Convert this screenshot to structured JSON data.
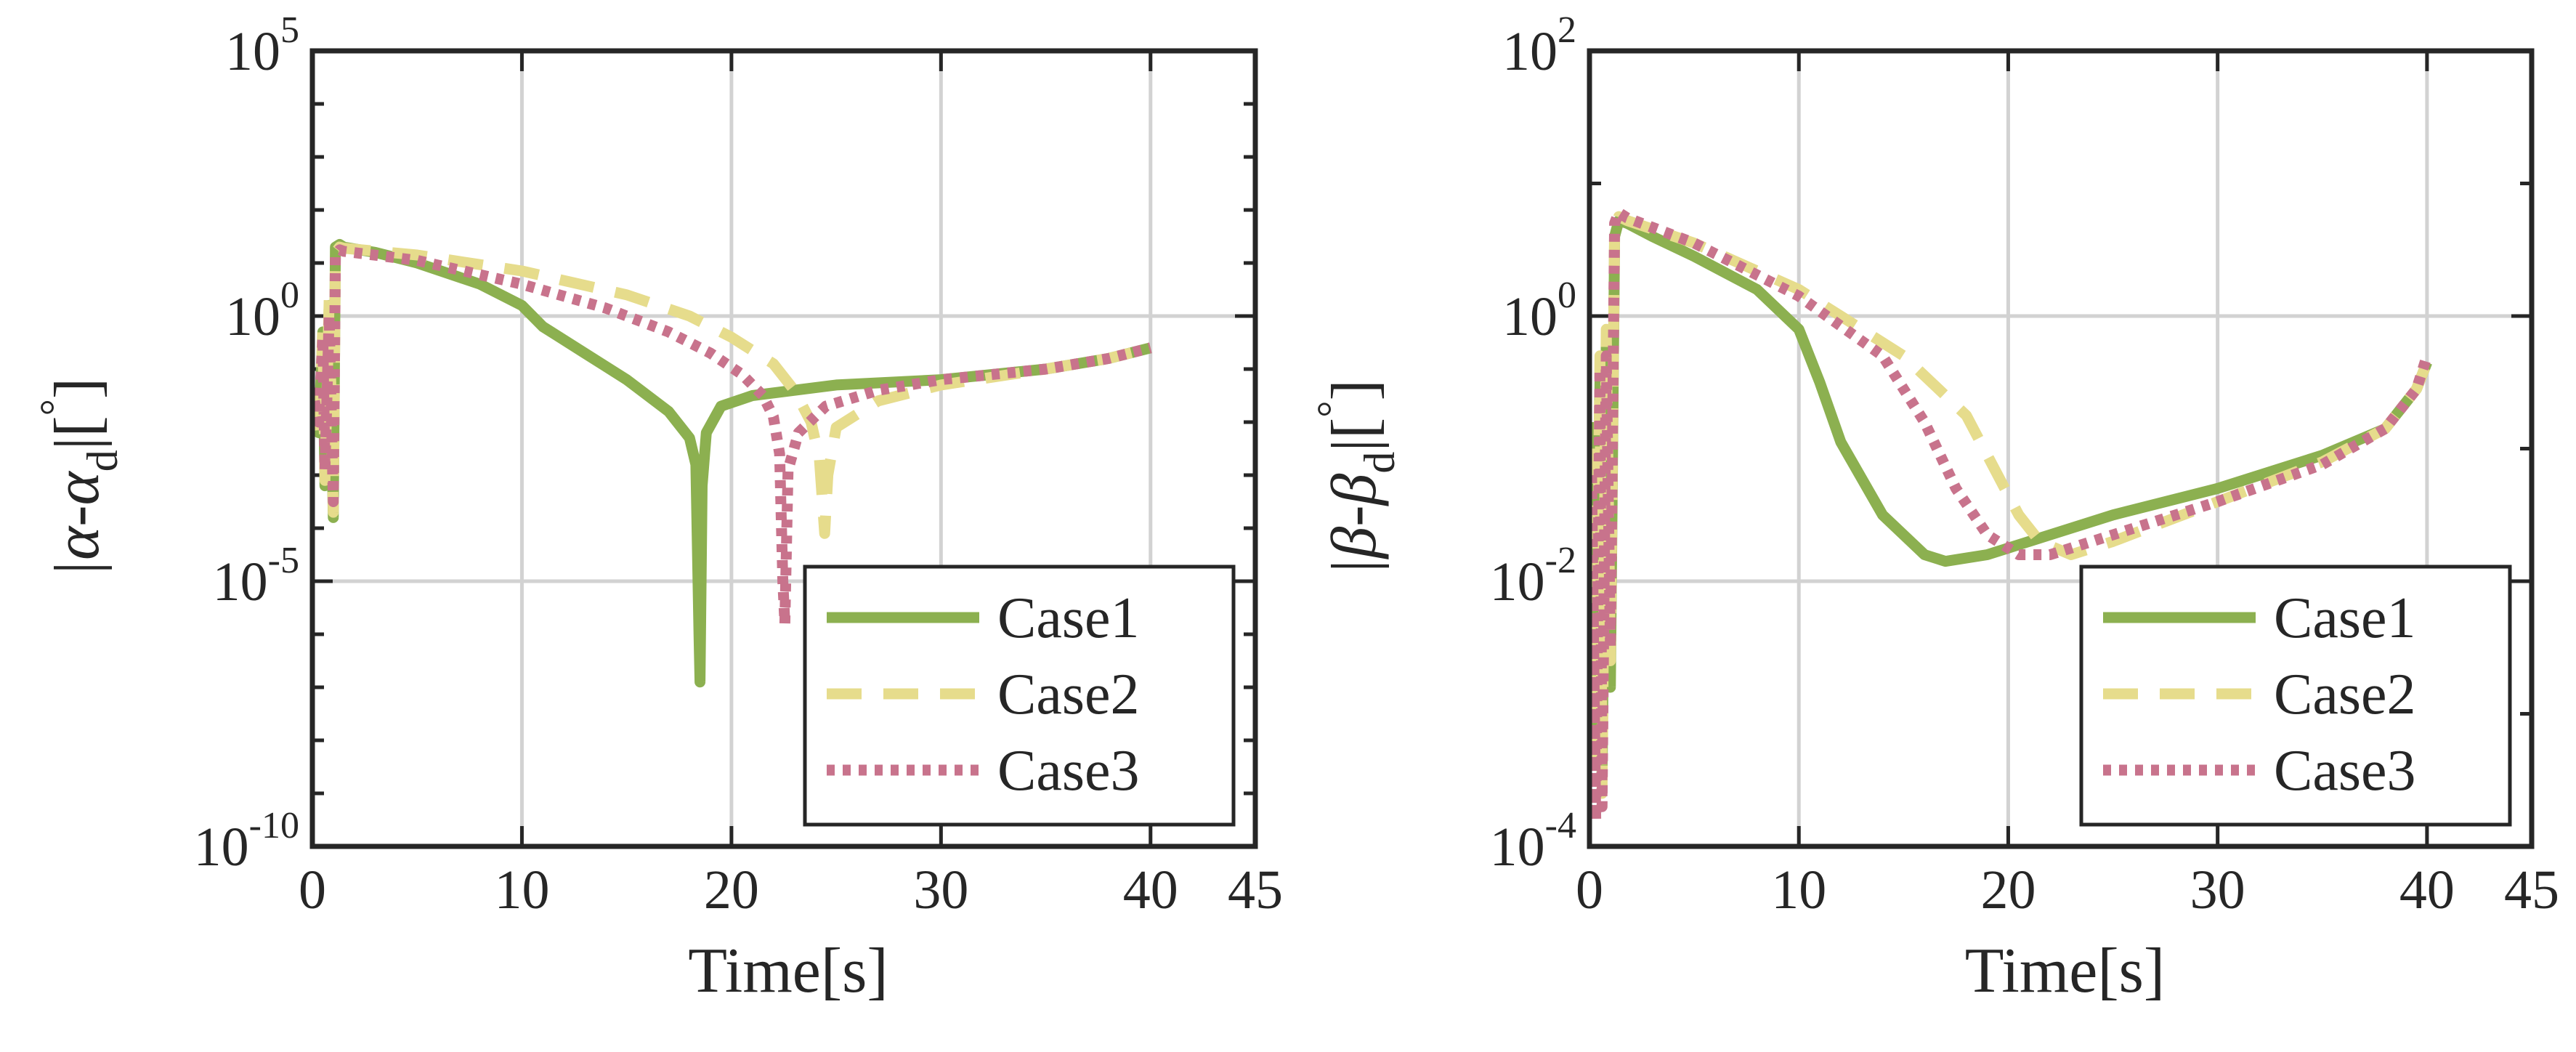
{
  "colors": {
    "case1": "#8cb050",
    "case2": "#e6dc8c",
    "case3": "#c8738c",
    "axis": "#262626",
    "grid": "#d2d2d2"
  },
  "chart_data": [
    {
      "type": "line",
      "yscale": "log",
      "xlabel": "Time[s]",
      "ylabel": "|α-α_d|[°]",
      "ylabel_parts": {
        "pre": "|α-α",
        "sub": "d",
        "post": "|[",
        "sup": "°",
        "end": "]"
      },
      "xlim": [
        0,
        45
      ],
      "ylim_exp": [
        -10,
        5
      ],
      "xticks": [
        0,
        10,
        20,
        30,
        40,
        45
      ],
      "xtick_labels": [
        "0",
        "10",
        "20",
        "30",
        "40",
        "45"
      ],
      "yticks_exp": [
        -10,
        -5,
        0,
        5
      ],
      "ytick_labels": [
        {
          "base": "10",
          "exp": "-10"
        },
        {
          "base": "10",
          "exp": "-5"
        },
        {
          "base": "10",
          "exp": "0"
        },
        {
          "base": "10",
          "exp": "5"
        }
      ],
      "grid": true,
      "legend_position": "bottom-right",
      "legend": [
        "Case1",
        "Case2",
        "Case3"
      ],
      "series": [
        {
          "name": "Case1",
          "style": "solid",
          "x": [
            0.1,
            0.3,
            0.5,
            0.6,
            0.8,
            1.0,
            1.1,
            1.3,
            1.5,
            3,
            5,
            8,
            10,
            11,
            13,
            15,
            17,
            18,
            18.3,
            18.45,
            18.5,
            18.6,
            18.8,
            19.5,
            21,
            25,
            30,
            35,
            38,
            40
          ],
          "y": [
            -1.5,
            -2.2,
            -0.3,
            -3.2,
            0.2,
            -3.8,
            1.3,
            1.35,
            1.3,
            1.2,
            1.0,
            0.6,
            0.2,
            -0.2,
            -0.7,
            -1.2,
            -1.8,
            -2.3,
            -2.8,
            -6.0,
            -6.9,
            -3.2,
            -2.2,
            -1.7,
            -1.5,
            -1.3,
            -1.2,
            -1.0,
            -0.8,
            -0.6
          ]
        },
        {
          "name": "Case2",
          "style": "dash",
          "x": [
            0.1,
            0.3,
            0.5,
            0.6,
            0.8,
            1.0,
            1.1,
            1.3,
            1.5,
            5,
            10,
            15,
            18,
            20,
            22,
            23,
            23.8,
            24.2,
            24.45,
            24.6,
            25,
            27,
            30,
            35,
            38,
            40
          ],
          "y": [
            -1.5,
            -2.3,
            -0.2,
            -3.1,
            0.3,
            -3.7,
            1.2,
            1.3,
            1.28,
            1.15,
            0.85,
            0.4,
            0.0,
            -0.4,
            -0.9,
            -1.4,
            -2.0,
            -2.7,
            -4.1,
            -3.0,
            -2.1,
            -1.6,
            -1.3,
            -1.0,
            -0.8,
            -0.6
          ]
        },
        {
          "name": "Case3",
          "style": "dot",
          "x": [
            0.1,
            0.3,
            0.5,
            0.6,
            0.8,
            1.0,
            1.1,
            1.3,
            1.5,
            5,
            10,
            14,
            17,
            19,
            20.5,
            21.5,
            22,
            22.3,
            22.45,
            22.55,
            22.7,
            23.2,
            24.5,
            27,
            30,
            35,
            38,
            40
          ],
          "y": [
            -1.6,
            -2.0,
            -0.4,
            -2.9,
            0.0,
            -3.5,
            1.15,
            1.25,
            1.22,
            1.05,
            0.6,
            0.15,
            -0.3,
            -0.7,
            -1.1,
            -1.5,
            -1.9,
            -2.6,
            -5.0,
            -5.8,
            -2.9,
            -2.2,
            -1.7,
            -1.4,
            -1.2,
            -1.0,
            -0.8,
            -0.6
          ]
        }
      ]
    },
    {
      "type": "line",
      "yscale": "log",
      "xlabel": "Time[s]",
      "ylabel": "|β-β_d|[°]",
      "ylabel_parts": {
        "pre": "|β-β",
        "sub": "d",
        "post": "|[",
        "sup": "°",
        "end": "]"
      },
      "xlim": [
        0,
        45
      ],
      "ylim_exp": [
        -4,
        2
      ],
      "xticks": [
        0,
        10,
        20,
        30,
        40,
        45
      ],
      "xtick_labels": [
        "0",
        "10",
        "20",
        "30",
        "40",
        "45"
      ],
      "yticks_exp": [
        -4,
        -2,
        0,
        2
      ],
      "ytick_labels": [
        {
          "base": "10",
          "exp": "-4"
        },
        {
          "base": "10",
          "exp": "-2"
        },
        {
          "base": "10",
          "exp": "0"
        },
        {
          "base": "10",
          "exp": "2"
        }
      ],
      "grid": true,
      "legend_position": "bottom-right",
      "legend": [
        "Case1",
        "Case2",
        "Case3"
      ],
      "series": [
        {
          "name": "Case1",
          "style": "solid",
          "x": [
            0.1,
            0.3,
            0.5,
            0.6,
            0.8,
            1.0,
            1.2,
            1.4,
            1.8,
            3,
            5,
            8,
            10,
            11,
            12,
            14,
            16,
            17,
            19,
            22,
            25,
            30,
            35,
            38,
            39.5,
            40
          ],
          "y": [
            -0.8,
            -3.1,
            -0.5,
            -3.5,
            -0.2,
            -2.8,
            0.6,
            0.72,
            0.7,
            0.6,
            0.45,
            0.2,
            -0.1,
            -0.5,
            -0.95,
            -1.5,
            -1.8,
            -1.85,
            -1.8,
            -1.65,
            -1.5,
            -1.3,
            -1.05,
            -0.85,
            -0.55,
            -0.35
          ]
        },
        {
          "name": "Case2",
          "style": "dash",
          "x": [
            0.1,
            0.3,
            0.5,
            0.6,
            0.8,
            1.0,
            1.2,
            1.4,
            1.8,
            5,
            10,
            15,
            18,
            19.5,
            20.5,
            21.5,
            23,
            25,
            30,
            35,
            38,
            39.5,
            40
          ],
          "y": [
            -1.0,
            -3.3,
            -0.3,
            -3.6,
            -0.1,
            -2.6,
            0.65,
            0.75,
            0.72,
            0.55,
            0.2,
            -0.3,
            -0.75,
            -1.2,
            -1.5,
            -1.7,
            -1.8,
            -1.7,
            -1.4,
            -1.1,
            -0.85,
            -0.55,
            -0.35
          ]
        },
        {
          "name": "Case3",
          "style": "dot",
          "x": [
            0.1,
            0.3,
            0.5,
            0.6,
            0.8,
            1.0,
            1.2,
            1.4,
            1.8,
            5,
            10,
            14,
            16,
            17.5,
            19,
            20.5,
            22,
            25,
            30,
            35,
            38,
            39.5,
            40
          ],
          "y": [
            -1.2,
            -3.8,
            -0.4,
            -3.7,
            -0.3,
            -2.5,
            0.7,
            0.78,
            0.74,
            0.55,
            0.15,
            -0.3,
            -0.8,
            -1.3,
            -1.65,
            -1.8,
            -1.8,
            -1.65,
            -1.4,
            -1.12,
            -0.85,
            -0.55,
            -0.3
          ]
        }
      ]
    }
  ]
}
